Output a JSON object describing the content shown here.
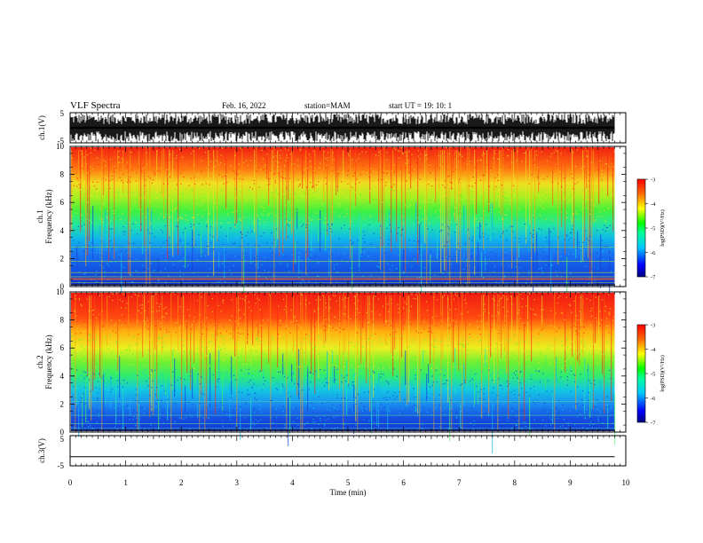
{
  "header": {
    "title": "VLF Spectra",
    "date": "Feb. 16, 2022",
    "station": "station=MAM",
    "start": "start  UT =   19: 10: 1"
  },
  "chart_data": [
    {
      "type": "line",
      "panel": "ch1-waveform",
      "ylabel": "ch.1(V)",
      "ylim": [
        -5,
        5
      ],
      "yticks": [
        "5",
        "-5"
      ],
      "xlim": [
        0,
        10
      ],
      "description_values": {
        "amplitude_range": [
          -5,
          5
        ]
      }
    },
    {
      "type": "heatmap",
      "panel": "ch1-spectrogram",
      "ylabel_line1": "ch.1",
      "ylabel_line2": "Frequency (kHz)",
      "ylim": [
        0,
        10
      ],
      "yticks": [
        "0",
        "2",
        "4",
        "6",
        "8",
        "10"
      ],
      "xlim": [
        0,
        10
      ],
      "data_end_min": 9.8,
      "colorbar": {
        "label": "log(PSD)(V²/Hz)",
        "range": [
          -7,
          -3
        ],
        "ticks": [
          "-3",
          "-4",
          "-5",
          "-6",
          "-7"
        ]
      }
    },
    {
      "type": "heatmap",
      "panel": "ch2-spectrogram",
      "ylabel_line1": "ch.2",
      "ylabel_line2": "Frequency (kHz)",
      "ylim": [
        0,
        10
      ],
      "yticks": [
        "0",
        "2",
        "4",
        "6",
        "8",
        "10"
      ],
      "xlim": [
        0,
        10
      ],
      "data_end_min": 9.8,
      "colorbar": {
        "label": "log(PSD)(V²/Hz)",
        "range": [
          -7,
          -3
        ],
        "ticks": [
          "-3",
          "-4",
          "-5",
          "-6",
          "-7"
        ]
      }
    },
    {
      "type": "line",
      "panel": "ch3-waveform",
      "ylabel": "ch.3(V)",
      "ylim": [
        -5,
        5
      ],
      "yticks": [
        "5",
        "-5"
      ],
      "constant_value": -2,
      "xlim": [
        0,
        10
      ]
    }
  ],
  "xaxis": {
    "label": "Time (min)",
    "ticks": [
      "0",
      "1",
      "2",
      "3",
      "4",
      "5",
      "6",
      "7",
      "8",
      "9",
      "10"
    ]
  }
}
